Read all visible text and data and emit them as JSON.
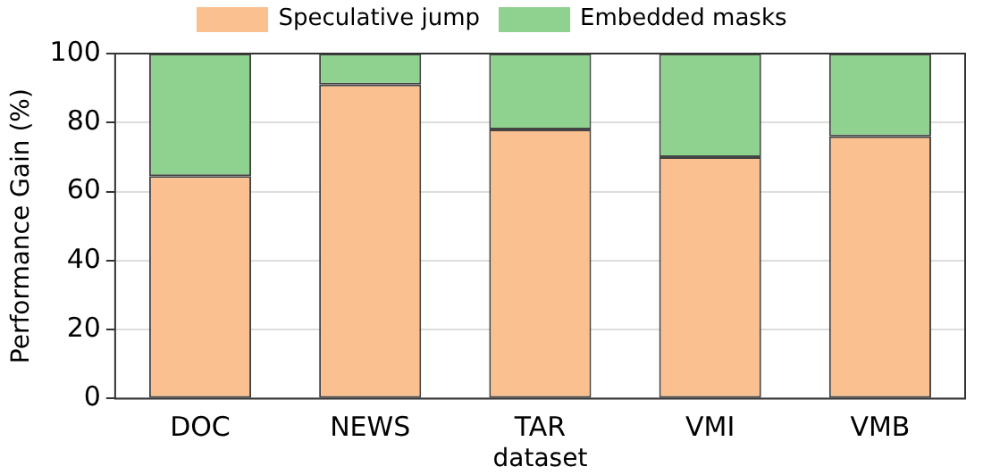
{
  "chart_data": {
    "type": "bar",
    "stacked": true,
    "xlabel": "dataset",
    "ylabel": "Performance Gain (%)",
    "categories": [
      "DOC",
      "NEWS",
      "TAR",
      "VMI",
      "VMB"
    ],
    "series": [
      {
        "name": "Speculative jump",
        "color": "#fac090",
        "values": [
          64.5,
          91,
          78,
          70,
          76
        ]
      },
      {
        "name": "Embedded masks",
        "color": "#8fd18f",
        "values": [
          35.5,
          9,
          22,
          30,
          24
        ]
      }
    ],
    "ylim": [
      0,
      100
    ],
    "yticks": [
      0,
      20,
      40,
      60,
      80,
      100
    ],
    "grid": "y",
    "legend": "top"
  }
}
